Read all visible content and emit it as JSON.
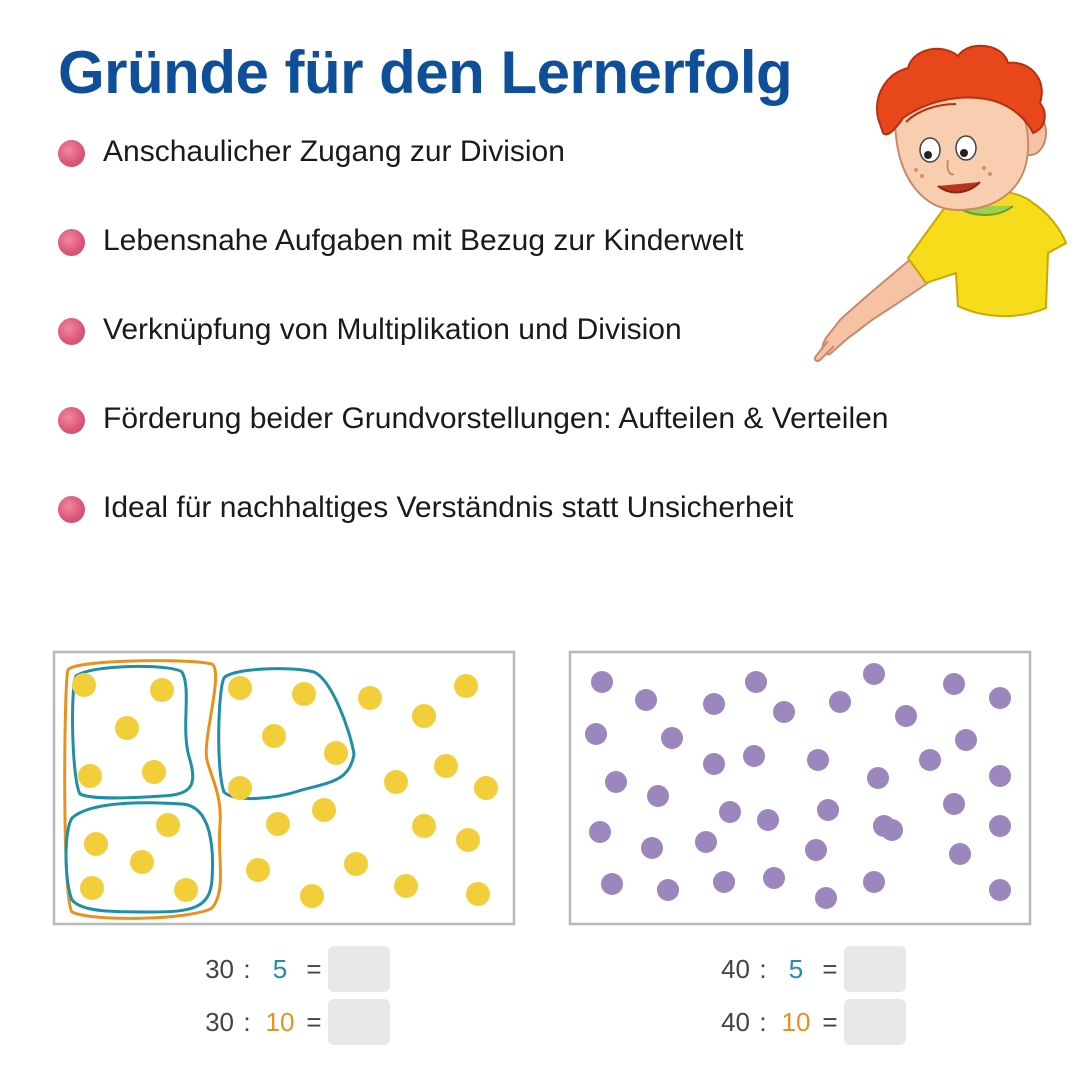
{
  "title": "Gründe für den Lernerfolg",
  "bullets": [
    "Anschaulicher Zugang zur Division",
    "Lebensnahe Aufgaben mit Bezug zur Kinderwelt",
    "Verknüpfung von Multiplikation und Division",
    "Förderung beider Grundvorstellungen: Aufteilen & Verteilen",
    "Ideal für nachhaltiges Verständnis statt Unsicherheit"
  ],
  "colors": {
    "title": "#0f4f9a",
    "bullet_dot": "#dc5878",
    "yellow_dot": "#f2cf3a",
    "purple_dot": "#9b86bd",
    "group_blue": "#1e8fa6",
    "group_orange": "#e8921e"
  },
  "exercises": {
    "left": [
      {
        "dividend": "30",
        "op": ":",
        "divisor": "5",
        "eq": "="
      },
      {
        "dividend": "30",
        "op": ":",
        "divisor": "10",
        "eq": "="
      }
    ],
    "right": [
      {
        "dividend": "40",
        "op": ":",
        "divisor": "5",
        "eq": "="
      },
      {
        "dividend": "40",
        "op": ":",
        "divisor": "10",
        "eq": "="
      }
    ]
  },
  "illustrations": {
    "left_dot_count": 30,
    "right_dot_count": 40,
    "character": "boy-pointing-illustration"
  }
}
